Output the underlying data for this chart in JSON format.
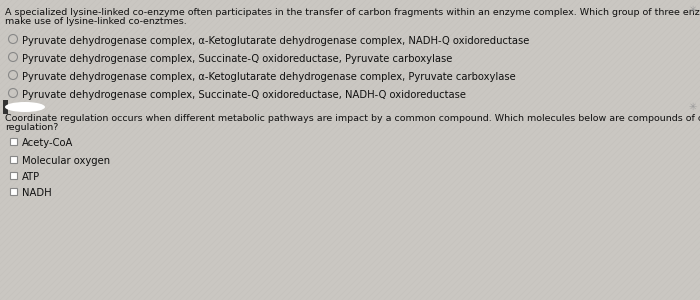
{
  "bg_color": "#cac7c2",
  "text_color": "#111111",
  "q1_prompt_line1": "A specialized lysine-linked co-enzyme often participates in the transfer of carbon fragments within an enzyme complex. Which group of three enzymes below",
  "q1_prompt_line2": "make use of lysine-linked co-enztmes.",
  "q1_options": [
    "Pyruvate dehydrogenase complex, α-Ketoglutarate dehydrogenase complex, NADH-Q oxidoreductase",
    "Pyruvate dehydrogenase complex, Succinate-Q oxidoreductase, Pyruvate carboxylase",
    "Pyruvate dehydrogenase complex, α-Ketoglutarate dehydrogenase complex, Pyruvate carboxylase",
    "Pyruvate dehydrogenase complex, Succinate-Q oxidoreductase, NADH-Q oxidoreductase"
  ],
  "q2_prompt_line1": "Coordinate regulation occurs when different metabolic pathways are impact by a common compound. Which molecules below are compounds of coordinated",
  "q2_prompt_line2": "regulation?",
  "q2_options": [
    "Acety-CoA",
    "Molecular oxygen",
    "ATP",
    "NADH"
  ],
  "font_size_prompt": 6.8,
  "font_size_option": 7.2,
  "snowflake_char": "✳",
  "radio_color": "#888888",
  "checkbox_color": "#888888"
}
